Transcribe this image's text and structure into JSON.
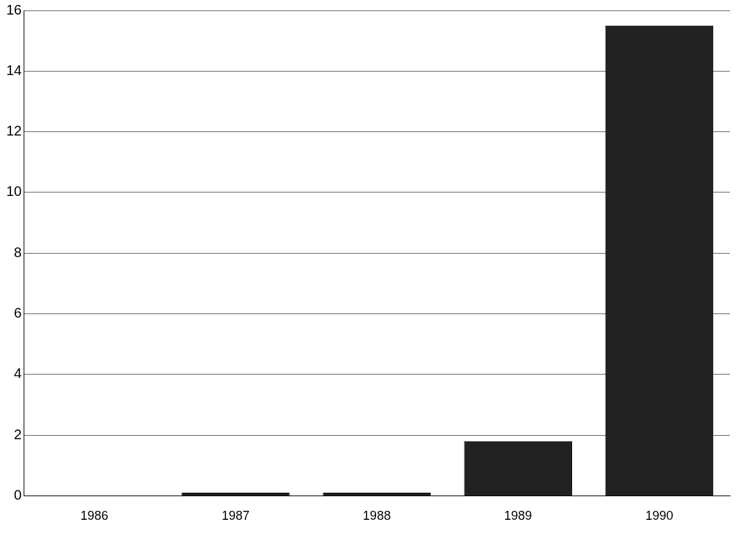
{
  "chart_data": {
    "type": "bar",
    "categories": [
      "1986",
      "1987",
      "1988",
      "1989",
      "1990"
    ],
    "values": [
      0,
      0.1,
      0.1,
      1.8,
      15.5
    ],
    "color": "#222222",
    "ylim": [
      0,
      16
    ],
    "yticks": [
      0,
      2,
      4,
      6,
      8,
      10,
      12,
      14,
      16
    ],
    "grid": "y"
  }
}
